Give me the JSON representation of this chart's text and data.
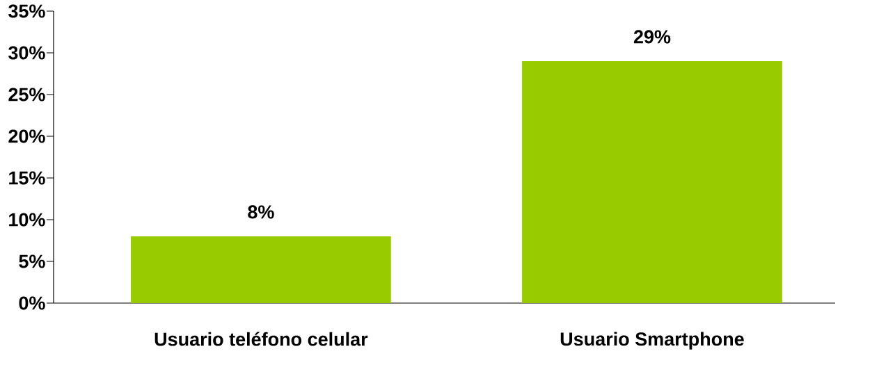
{
  "chart_data": {
    "type": "bar",
    "categories": [
      "Usuario teléfono celular",
      "Usuario Smartphone"
    ],
    "values": [
      8,
      29
    ],
    "color": "#99cc00",
    "value_labels": [
      "8%",
      "29%"
    ],
    "ylim": [
      0,
      35
    ],
    "yticks": [
      {
        "value": 0,
        "label": "0%"
      },
      {
        "value": 5,
        "label": "5%"
      },
      {
        "value": 10,
        "label": "10%"
      },
      {
        "value": 15,
        "label": "15%"
      },
      {
        "value": 20,
        "label": "20%"
      },
      {
        "value": 25,
        "label": "25%"
      },
      {
        "value": 30,
        "label": "30%"
      },
      {
        "value": 35,
        "label": "35%"
      }
    ],
    "grid": false
  }
}
